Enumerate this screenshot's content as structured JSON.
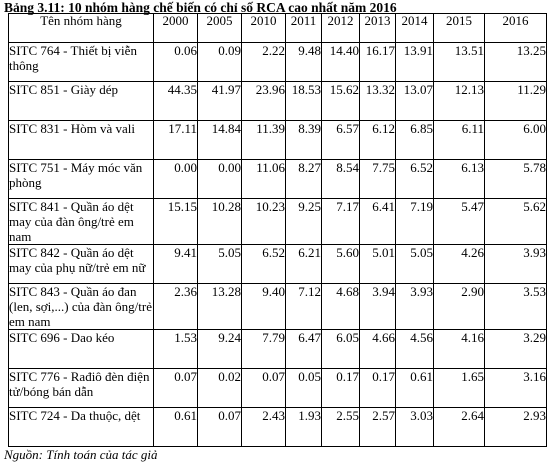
{
  "caption": "Bảng 3.11: 10 nhóm hàng chế biến có chỉ số RCA cao nhất năm 2016",
  "table": {
    "header": {
      "name": "Tên nhóm hàng",
      "years": [
        "2000",
        "2005",
        "2010",
        "2011",
        "2012",
        "2013",
        "2014",
        "2015",
        "2016"
      ]
    },
    "rows": [
      {
        "name": "SITC 764 - Thiết bị viễn thông",
        "values": [
          "0.06",
          "0.09",
          "2.22",
          "9.48",
          "14.40",
          "16.17",
          "13.91",
          "13.51",
          "13.25"
        ]
      },
      {
        "name": "SITC 851 - Giày dép",
        "values": [
          "44.35",
          "41.97",
          "23.96",
          "18.53",
          "15.62",
          "13.32",
          "13.07",
          "12.13",
          "11.29"
        ]
      },
      {
        "name": "SITC 831 - Hòm và vali",
        "values": [
          "17.11",
          "14.84",
          "11.39",
          "8.39",
          "6.57",
          "6.12",
          "6.85",
          "6.11",
          "6.00"
        ]
      },
      {
        "name": "SITC 751 - Máy móc văn phòng",
        "values": [
          "0.00",
          "0.00",
          "11.06",
          "8.27",
          "8.54",
          "7.75",
          "6.52",
          "6.13",
          "5.78"
        ]
      },
      {
        "name": "SITC 841 - Quần áo dệt may của đàn ông/trẻ em nam",
        "values": [
          "15.15",
          "10.28",
          "10.23",
          "9.25",
          "7.17",
          "6.41",
          "7.19",
          "5.47",
          "5.62"
        ]
      },
      {
        "name": "SITC 842 - Quần áo dệt may của phụ nữ/trẻ em nữ",
        "values": [
          "9.41",
          "5.05",
          "6.52",
          "6.21",
          "5.60",
          "5.01",
          "5.05",
          "4.26",
          "3.93"
        ]
      },
      {
        "name": "SITC 843 - Quần áo đan (len, sợi,...) của đàn ông/trẻ em nam",
        "values": [
          "2.36",
          "13.28",
          "9.40",
          "7.12",
          "4.68",
          "3.94",
          "3.93",
          "2.90",
          "3.53"
        ]
      },
      {
        "name": "SITC 696 - Dao kéo",
        "values": [
          "1.53",
          "9.24",
          "7.79",
          "6.47",
          "6.05",
          "4.66",
          "4.56",
          "4.16",
          "3.29"
        ]
      },
      {
        "name": "SITC 776 - Rađiô đèn điện tử/bóng bán dẫn",
        "values": [
          "0.07",
          "0.02",
          "0.07",
          "0.05",
          "0.17",
          "0.17",
          "0.61",
          "1.65",
          "3.16"
        ]
      },
      {
        "name": "SITC 724 - Da thuộc, dệt",
        "values": [
          "0.61",
          "0.07",
          "2.43",
          "1.93",
          "2.55",
          "2.57",
          "3.03",
          "2.64",
          "2.93"
        ]
      }
    ]
  },
  "source": "Nguồn: Tính toán của tác giả"
}
